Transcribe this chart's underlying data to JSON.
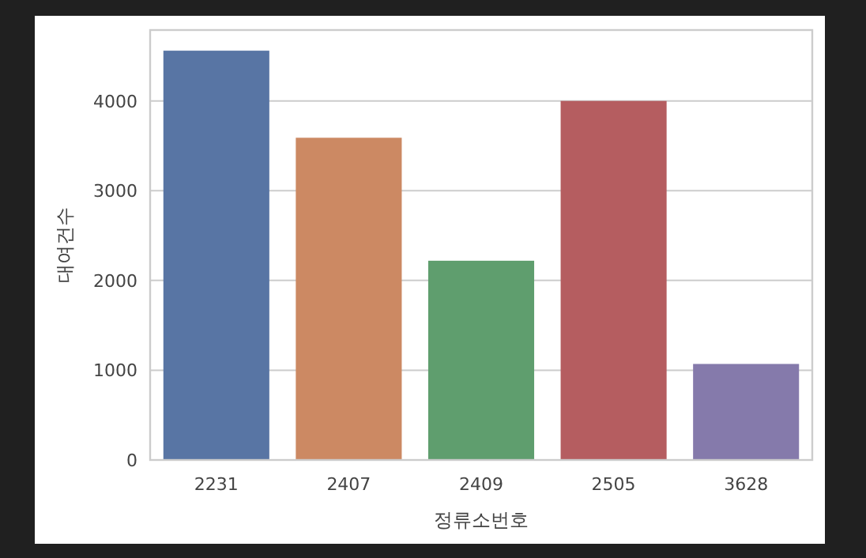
{
  "chart_data": {
    "type": "bar",
    "xlabel": "정류소번호",
    "ylabel": "대여건수",
    "categories": [
      "2231",
      "2407",
      "2409",
      "2505",
      "3628"
    ],
    "values": [
      4560,
      3590,
      2220,
      4000,
      1070
    ],
    "colors": [
      "#5875a4",
      "#cc8963",
      "#5f9e6e",
      "#b55d60",
      "#857aab"
    ],
    "ylim": [
      0,
      4790
    ],
    "yticks": [
      0,
      1000,
      2000,
      3000,
      4000
    ],
    "grid": "y"
  }
}
